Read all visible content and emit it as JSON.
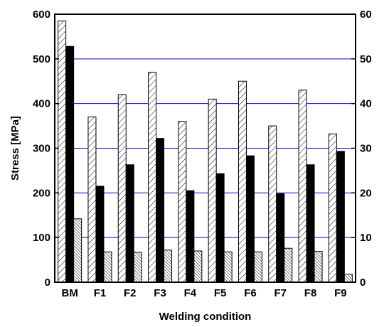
{
  "chart_data": {
    "type": "bar",
    "title": "",
    "xlabel": "Welding condition",
    "ylabel": "Stress [MPa]",
    "y2label": "",
    "categories": [
      "BM",
      "F1",
      "F2",
      "F3",
      "F4",
      "F5",
      "F6",
      "F7",
      "F8",
      "F9"
    ],
    "ylim": [
      0,
      600
    ],
    "y2lim": [
      0,
      60
    ],
    "yticks": [
      0,
      100,
      200,
      300,
      400,
      500,
      600
    ],
    "y2ticks": [
      0,
      10,
      20,
      30,
      40,
      50,
      60
    ],
    "grid": "horizontal",
    "legend": "none",
    "series": [
      {
        "axis": "left",
        "pattern": "diagonal-hatch",
        "values": [
          585,
          370,
          420,
          470,
          360,
          410,
          450,
          350,
          430,
          332
        ]
      },
      {
        "axis": "left",
        "pattern": "solid-black",
        "values": [
          528,
          215,
          263,
          322,
          205,
          243,
          283,
          198,
          263,
          293
        ]
      },
      {
        "axis": "right",
        "pattern": "dense-hatch",
        "values": [
          14.2,
          6.8,
          6.7,
          7.2,
          7.0,
          6.8,
          6.8,
          7.6,
          6.9,
          1.8
        ]
      }
    ],
    "colors": {
      "grid": "#0000cc",
      "bar_fill": "#000000",
      "hatch_bg": "#ffffff"
    }
  }
}
